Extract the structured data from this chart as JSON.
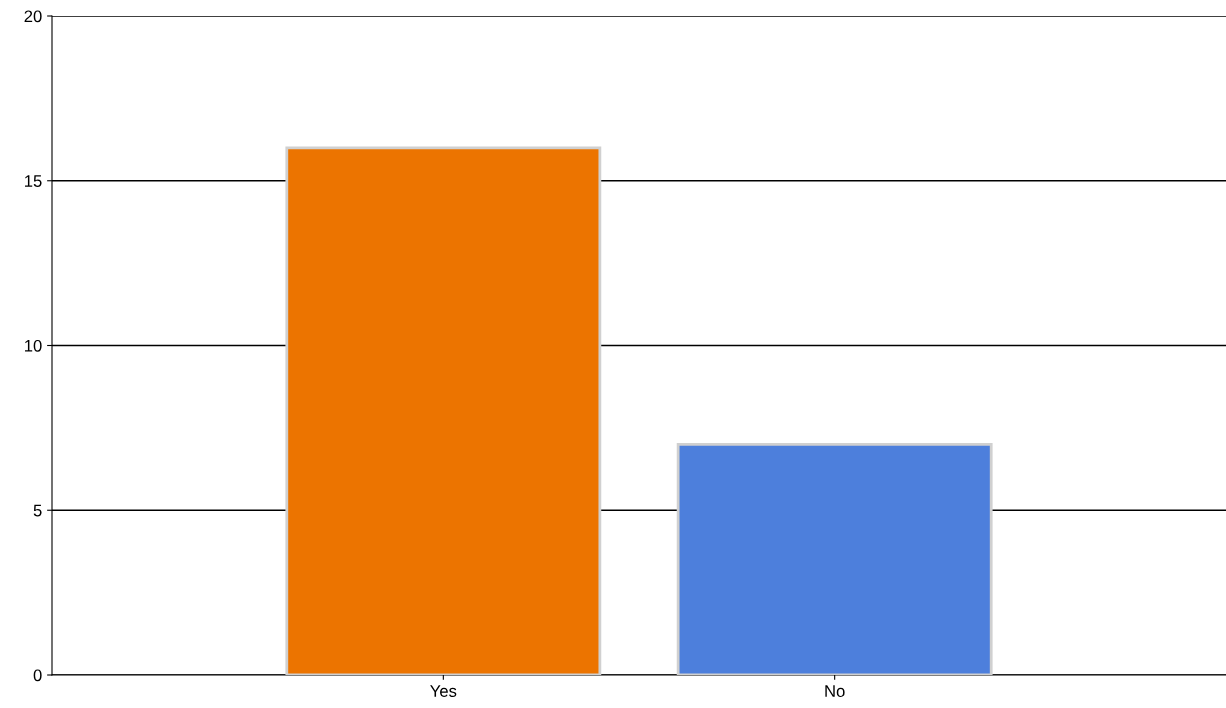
{
  "chart_data": {
    "type": "bar",
    "categories": [
      "Yes",
      "No"
    ],
    "values": [
      16,
      7
    ],
    "colors": [
      "#ec7400",
      "#4d7fdc"
    ],
    "ylim": [
      0,
      20
    ],
    "yticks": [
      0,
      5,
      10,
      15,
      20
    ],
    "grid": "y",
    "legend": false
  }
}
